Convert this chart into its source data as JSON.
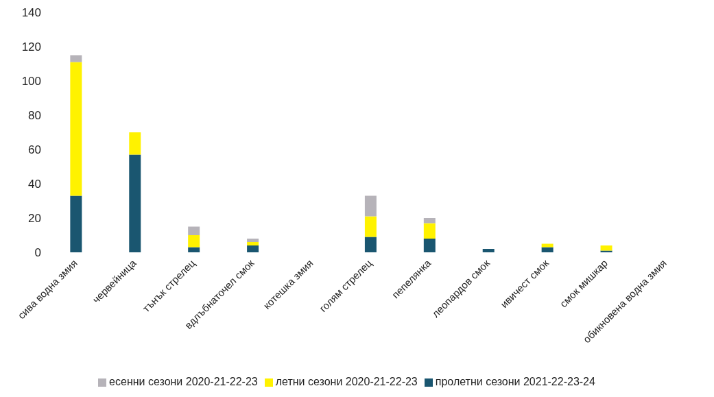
{
  "chart_data": {
    "type": "bar",
    "stacked": true,
    "categories": [
      "сива водна змия",
      "червейница",
      "тънък стрелец",
      "вдлъбнаточел смок",
      "котешка змия",
      "голям стрелец",
      "пепелянка",
      "леопардов смок",
      "ивичест смок",
      "смок мишкар",
      "обикновена водна змия"
    ],
    "series": [
      {
        "name": "пролетни сезони 2021-22-23-24",
        "color": "#1a5670",
        "values": [
          33,
          57,
          3,
          4,
          0,
          9,
          8,
          2,
          3,
          1,
          0
        ]
      },
      {
        "name": "летни сезони 2020-21-22-23",
        "color": "#fff200",
        "values": [
          78,
          13,
          7,
          2,
          0,
          12,
          9,
          0,
          2,
          3,
          0
        ]
      },
      {
        "name": "есенни сезони 2020-21-22-23",
        "color": "#b6b3b9",
        "values": [
          4,
          0,
          5,
          2,
          0,
          12,
          3,
          0,
          0,
          0,
          0
        ]
      }
    ],
    "ylim": [
      0,
      140
    ],
    "yticks": [
      0,
      20,
      40,
      60,
      80,
      100,
      120,
      140
    ],
    "grid": false,
    "legend": "bottom"
  }
}
